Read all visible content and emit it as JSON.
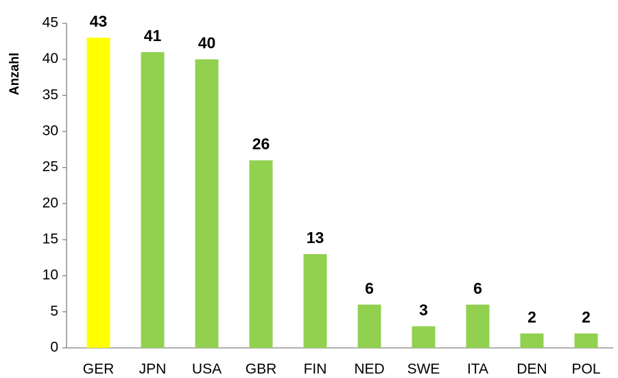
{
  "chart_data": {
    "type": "bar",
    "y_label": "Anzahl",
    "categories": [
      "GER",
      "JPN",
      "USA",
      "GBR",
      "FIN",
      "NED",
      "SWE",
      "ITA",
      "DEN",
      "POL"
    ],
    "values": [
      43,
      41,
      40,
      26,
      13,
      6,
      3,
      6,
      2,
      2
    ],
    "colors": [
      "#ffff00",
      "#92d050",
      "#92d050",
      "#92d050",
      "#92d050",
      "#92d050",
      "#92d050",
      "#92d050",
      "#92d050",
      "#92d050"
    ],
    "ylim": [
      0,
      45
    ],
    "yticks": [
      0,
      5,
      10,
      15,
      20,
      25,
      30,
      35,
      40,
      45
    ],
    "grid": false
  }
}
